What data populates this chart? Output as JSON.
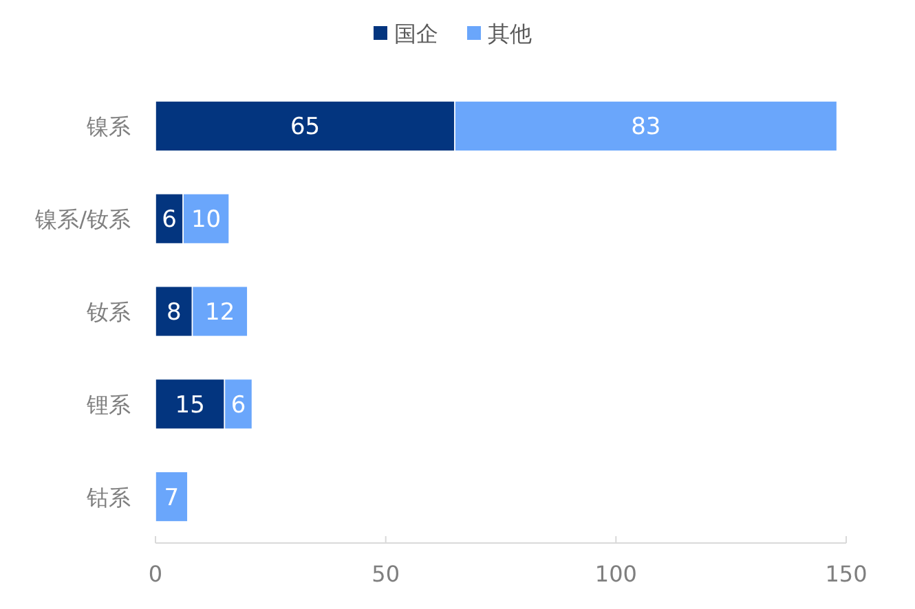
{
  "chart_data": {
    "type": "bar",
    "orientation": "horizontal",
    "stacked": true,
    "legend": "top",
    "categories": [
      "镍系",
      "镍系/钕系",
      "钕系",
      "锂系",
      "钴系"
    ],
    "series": [
      {
        "name": "国企",
        "color": "#03357f",
        "values": [
          65,
          6,
          8,
          15,
          0
        ],
        "value_labels": [
          "65",
          "6",
          "8",
          "15",
          null
        ]
      },
      {
        "name": "其他",
        "color": "#6aa6fb",
        "values": [
          83,
          10,
          12,
          6,
          7
        ],
        "value_labels": [
          "83",
          "10",
          "12",
          "6",
          "7"
        ]
      }
    ],
    "xlim": [
      0,
      150
    ],
    "xticks": [
      0,
      50,
      100,
      150
    ]
  }
}
